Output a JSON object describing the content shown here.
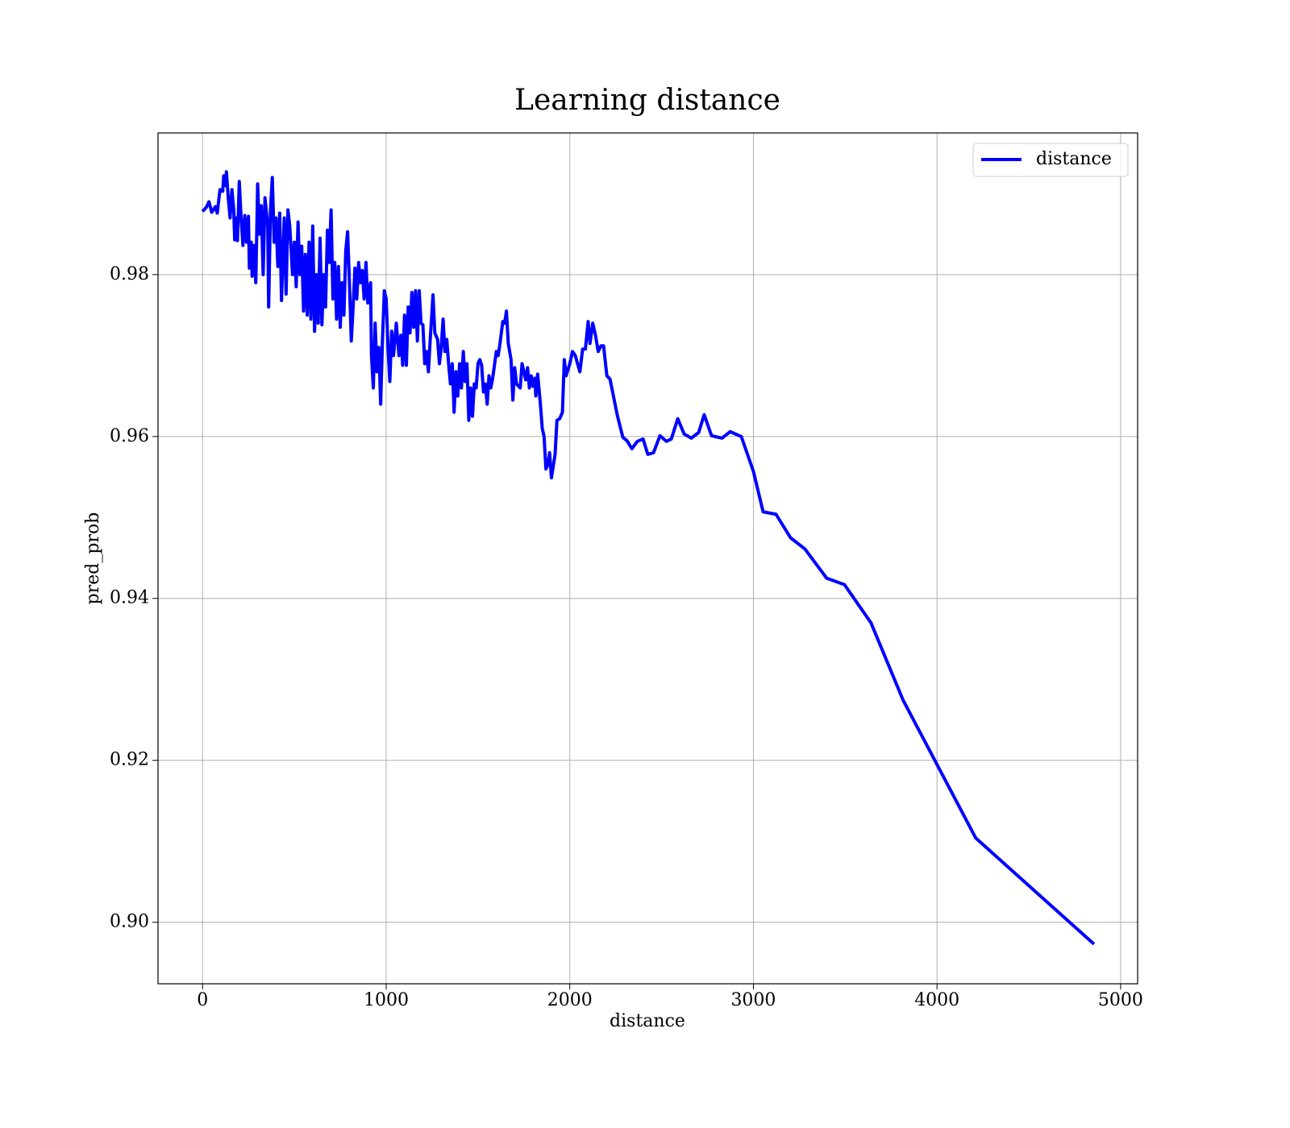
{
  "chart_data": {
    "type": "line",
    "title": "Learning distance",
    "x_label": "distance",
    "y_label": "pred_prob",
    "x": [
      0,
      20,
      35,
      50,
      70,
      80,
      95,
      110,
      115,
      125,
      130,
      140,
      150,
      160,
      170,
      175,
      185,
      190,
      200,
      210,
      220,
      230,
      240,
      250,
      255,
      265,
      270,
      280,
      290,
      300,
      310,
      320,
      330,
      340,
      355,
      360,
      370,
      380,
      390,
      400,
      410,
      420,
      430,
      445,
      455,
      465,
      475,
      490,
      500,
      510,
      520,
      530,
      540,
      550,
      560,
      570,
      580,
      590,
      600,
      610,
      620,
      630,
      640,
      650,
      660,
      670,
      680,
      690,
      700,
      710,
      720,
      730,
      740,
      750,
      760,
      770,
      780,
      790,
      800,
      810,
      820,
      830,
      840,
      850,
      860,
      870,
      880,
      890,
      900,
      915,
      920,
      930,
      940,
      950,
      960,
      970,
      980,
      990,
      1000,
      1010,
      1020,
      1030,
      1040,
      1055,
      1070,
      1080,
      1090,
      1100,
      1110,
      1120,
      1130,
      1140,
      1150,
      1160,
      1170,
      1180,
      1190,
      1200,
      1210,
      1220,
      1230,
      1240,
      1255,
      1265,
      1280,
      1290,
      1300,
      1310,
      1320,
      1330,
      1340,
      1350,
      1360,
      1370,
      1380,
      1390,
      1400,
      1410,
      1420,
      1430,
      1440,
      1450,
      1460,
      1470,
      1480,
      1490,
      1500,
      1510,
      1520,
      1530,
      1540,
      1550,
      1560,
      1570,
      1580,
      1600,
      1610,
      1620,
      1635,
      1645,
      1655,
      1665,
      1680,
      1690,
      1700,
      1710,
      1730,
      1740,
      1750,
      1760,
      1770,
      1780,
      1790,
      1800,
      1810,
      1815,
      1825,
      1840,
      1850,
      1860,
      1870,
      1880,
      1890,
      1900,
      1920,
      1930,
      1945,
      1960,
      1970,
      1980,
      2000,
      2015,
      2030,
      2055,
      2070,
      2085,
      2100,
      2110,
      2125,
      2140,
      2155,
      2170,
      2184,
      2202,
      2219,
      2259,
      2289,
      2311,
      2338,
      2368,
      2399,
      2425,
      2456,
      2491,
      2526,
      2553,
      2588,
      2623,
      2662,
      2702,
      2732,
      2772,
      2829,
      2873,
      2934,
      3000,
      3053,
      3123,
      3202,
      3281,
      3399,
      3496,
      3640,
      3816,
      4211,
      4855
    ],
    "series": [
      {
        "name": "distance",
        "color": "#0000ff",
        "values": [
          0.9878,
          0.9883,
          0.989,
          0.9877,
          0.9884,
          0.9876,
          0.9905,
          0.9903,
          0.9922,
          0.991,
          0.9927,
          0.9895,
          0.987,
          0.9905,
          0.988,
          0.9843,
          0.987,
          0.9842,
          0.9915,
          0.987,
          0.9836,
          0.9873,
          0.984,
          0.9872,
          0.9808,
          0.984,
          0.9798,
          0.9836,
          0.979,
          0.9912,
          0.985,
          0.9885,
          0.98,
          0.9895,
          0.986,
          0.976,
          0.988,
          0.992,
          0.984,
          0.987,
          0.981,
          0.9876,
          0.9768,
          0.987,
          0.9776,
          0.988,
          0.986,
          0.98,
          0.984,
          0.9785,
          0.9865,
          0.98,
          0.9835,
          0.9755,
          0.9825,
          0.975,
          0.984,
          0.9745,
          0.986,
          0.973,
          0.98,
          0.974,
          0.9845,
          0.9738,
          0.98,
          0.976,
          0.9855,
          0.9815,
          0.988,
          0.977,
          0.9815,
          0.9745,
          0.981,
          0.9735,
          0.979,
          0.975,
          0.983,
          0.9853,
          0.979,
          0.9718,
          0.976,
          0.9808,
          0.977,
          0.9815,
          0.979,
          0.9805,
          0.977,
          0.9815,
          0.9765,
          0.979,
          0.97,
          0.966,
          0.974,
          0.968,
          0.971,
          0.964,
          0.972,
          0.978,
          0.977,
          0.971,
          0.9668,
          0.973,
          0.97,
          0.974,
          0.97,
          0.9725,
          0.9688,
          0.975,
          0.9688,
          0.976,
          0.9728,
          0.9778,
          0.9735,
          0.978,
          0.9718,
          0.978,
          0.974,
          0.9738,
          0.969,
          0.9705,
          0.968,
          0.972,
          0.9775,
          0.9728,
          0.972,
          0.969,
          0.971,
          0.9745,
          0.9705,
          0.972,
          0.969,
          0.9665,
          0.969,
          0.963,
          0.968,
          0.965,
          0.969,
          0.966,
          0.9705,
          0.9668,
          0.969,
          0.962,
          0.966,
          0.9625,
          0.9665,
          0.966,
          0.969,
          0.9695,
          0.9688,
          0.9655,
          0.9665,
          0.964,
          0.9675,
          0.966,
          0.9672,
          0.9705,
          0.97,
          0.9715,
          0.9742,
          0.974,
          0.9755,
          0.9715,
          0.9695,
          0.9645,
          0.9685,
          0.9665,
          0.966,
          0.969,
          0.968,
          0.967,
          0.9685,
          0.966,
          0.9675,
          0.9662,
          0.9672,
          0.965,
          0.9677,
          0.964,
          0.961,
          0.96,
          0.956,
          0.9565,
          0.958,
          0.9549,
          0.9578,
          0.962,
          0.9622,
          0.963,
          0.9695,
          0.9675,
          0.969,
          0.9705,
          0.97,
          0.968,
          0.9708,
          0.9708,
          0.9742,
          0.9715,
          0.974,
          0.9725,
          0.9705,
          0.9712,
          0.9712,
          0.9675,
          0.9671,
          0.9626,
          0.9599,
          0.9595,
          0.9585,
          0.9594,
          0.9597,
          0.9578,
          0.958,
          0.9601,
          0.9594,
          0.9597,
          0.9622,
          0.9603,
          0.9598,
          0.9605,
          0.9627,
          0.9601,
          0.9598,
          0.9606,
          0.96,
          0.9557,
          0.9507,
          0.9504,
          0.9475,
          0.9461,
          0.9425,
          0.9417,
          0.937,
          0.9274,
          0.9104,
          0.8973
        ]
      }
    ],
    "xlim": [
      -242.5,
      5092.5
    ],
    "xticks": [
      0,
      1000,
      2000,
      3000,
      4000,
      5000
    ],
    "ylim": [
      0.8924,
      0.9975
    ],
    "yticks": [
      {
        "value": 0.9,
        "label": "0.90"
      },
      0.92,
      0.94,
      0.96,
      0.98
    ],
    "grid": true,
    "legend": "upper right"
  }
}
